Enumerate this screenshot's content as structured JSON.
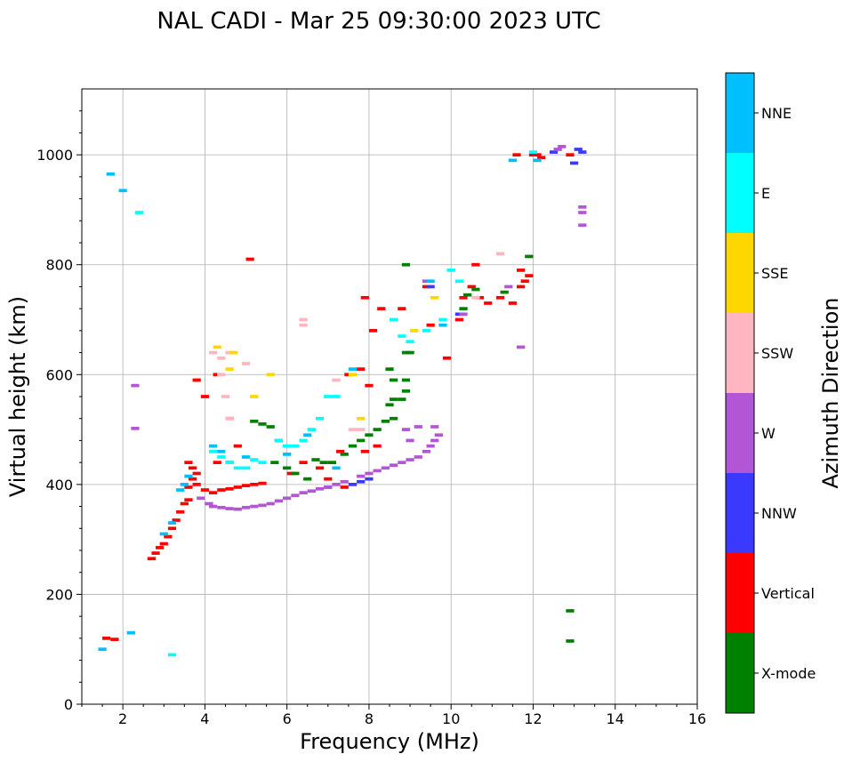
{
  "chart_data": {
    "type": "scatter",
    "title": "NAL CADI - Mar 25 09:30:00 2023 UTC",
    "xlabel": "Frequency (MHz)",
    "ylabel": "Virtual height (km)",
    "xlim": [
      1,
      16
    ],
    "ylim": [
      0,
      1120
    ],
    "xticks": [
      "2",
      "4",
      "6",
      "8",
      "10",
      "12",
      "14",
      "16"
    ],
    "yticks": [
      "0",
      "200",
      "400",
      "600",
      "800",
      "1000"
    ],
    "grid": true,
    "colorbar": {
      "label": "Azimuth Direction",
      "categories": [
        {
          "name": "X-mode",
          "color": "#008000"
        },
        {
          "name": "Vertical",
          "color": "#ff0000"
        },
        {
          "name": "NNW",
          "color": "#3a3aff"
        },
        {
          "name": "W",
          "color": "#b356d6"
        },
        {
          "name": "SSW",
          "color": "#ffb6c1"
        },
        {
          "name": "SSE",
          "color": "#ffd700"
        },
        {
          "name": "E",
          "color": "#00ffff"
        },
        {
          "name": "NNE",
          "color": "#00bfff"
        }
      ]
    },
    "series": [
      {
        "name": "Vertical",
        "points": [
          [
            1.6,
            120
          ],
          [
            1.8,
            118
          ],
          [
            2.7,
            265
          ],
          [
            2.8,
            275
          ],
          [
            2.9,
            285
          ],
          [
            3.0,
            292
          ],
          [
            3.1,
            305
          ],
          [
            3.2,
            320
          ],
          [
            3.3,
            335
          ],
          [
            3.4,
            350
          ],
          [
            3.5,
            365
          ],
          [
            3.6,
            372
          ],
          [
            3.6,
            395
          ],
          [
            3.7,
            410
          ],
          [
            3.7,
            430
          ],
          [
            3.6,
            440
          ],
          [
            3.8,
            420
          ],
          [
            3.8,
            400
          ],
          [
            4.0,
            390
          ],
          [
            4.2,
            385
          ],
          [
            4.4,
            390
          ],
          [
            4.6,
            392
          ],
          [
            4.8,
            395
          ],
          [
            5.0,
            398
          ],
          [
            5.2,
            400
          ],
          [
            5.4,
            402
          ],
          [
            4.0,
            560
          ],
          [
            3.8,
            590
          ],
          [
            4.3,
            600
          ],
          [
            4.6,
            520
          ],
          [
            4.8,
            470
          ],
          [
            4.3,
            440
          ],
          [
            4.6,
            440
          ],
          [
            5.1,
            810
          ],
          [
            6.1,
            420
          ],
          [
            6.4,
            440
          ],
          [
            6.8,
            430
          ],
          [
            7.0,
            410
          ],
          [
            7.4,
            395
          ],
          [
            7.3,
            460
          ],
          [
            7.9,
            460
          ],
          [
            8.2,
            470
          ],
          [
            7.5,
            600
          ],
          [
            7.8,
            610
          ],
          [
            8.0,
            580
          ],
          [
            7.9,
            740
          ],
          [
            8.1,
            680
          ],
          [
            8.3,
            720
          ],
          [
            8.8,
            720
          ],
          [
            9.4,
            760
          ],
          [
            9.5,
            690
          ],
          [
            9.9,
            630
          ],
          [
            10.2,
            700
          ],
          [
            10.3,
            740
          ],
          [
            10.5,
            760
          ],
          [
            10.6,
            800
          ],
          [
            10.7,
            740
          ],
          [
            10.9,
            730
          ],
          [
            11.2,
            740
          ],
          [
            11.5,
            730
          ],
          [
            11.7,
            760
          ],
          [
            11.7,
            790
          ],
          [
            11.8,
            770
          ],
          [
            11.9,
            780
          ],
          [
            12.0,
            1000
          ],
          [
            12.1,
            1000
          ],
          [
            12.2,
            995
          ],
          [
            11.6,
            1000
          ],
          [
            12.9,
            1000
          ]
        ]
      },
      {
        "name": "X-mode",
        "points": [
          [
            5.2,
            515
          ],
          [
            5.4,
            510
          ],
          [
            5.6,
            505
          ],
          [
            5.8,
            480
          ],
          [
            5.7,
            440
          ],
          [
            6.0,
            430
          ],
          [
            6.2,
            420
          ],
          [
            6.5,
            410
          ],
          [
            6.7,
            445
          ],
          [
            6.9,
            440
          ],
          [
            7.1,
            440
          ],
          [
            7.4,
            455
          ],
          [
            7.6,
            470
          ],
          [
            7.8,
            480
          ],
          [
            8.0,
            490
          ],
          [
            8.2,
            500
          ],
          [
            8.4,
            515
          ],
          [
            8.6,
            520
          ],
          [
            8.5,
            545
          ],
          [
            8.6,
            555
          ],
          [
            8.8,
            555
          ],
          [
            8.9,
            570
          ],
          [
            8.6,
            590
          ],
          [
            8.9,
            590
          ],
          [
            8.5,
            610
          ],
          [
            8.9,
            640
          ],
          [
            9.0,
            640
          ],
          [
            8.9,
            800
          ],
          [
            10.3,
            720
          ],
          [
            10.4,
            745
          ],
          [
            10.6,
            755
          ],
          [
            11.3,
            750
          ],
          [
            11.9,
            815
          ],
          [
            12.9,
            170
          ],
          [
            12.9,
            115
          ]
        ]
      },
      {
        "name": "NNW",
        "points": [
          [
            7.0,
            395
          ],
          [
            7.6,
            400
          ],
          [
            7.8,
            405
          ],
          [
            8.0,
            410
          ],
          [
            9.5,
            760
          ],
          [
            10.2,
            710
          ],
          [
            13.1,
            1010
          ],
          [
            13.2,
            1005
          ],
          [
            12.5,
            1005
          ],
          [
            13.0,
            985
          ]
        ]
      },
      {
        "name": "W",
        "points": [
          [
            3.9,
            375
          ],
          [
            4.1,
            365
          ],
          [
            4.2,
            360
          ],
          [
            4.4,
            358
          ],
          [
            4.6,
            356
          ],
          [
            4.8,
            355
          ],
          [
            5.0,
            358
          ],
          [
            5.2,
            360
          ],
          [
            5.4,
            362
          ],
          [
            5.6,
            365
          ],
          [
            5.8,
            370
          ],
          [
            6.0,
            375
          ],
          [
            6.2,
            380
          ],
          [
            6.4,
            385
          ],
          [
            6.6,
            388
          ],
          [
            6.8,
            392
          ],
          [
            7.0,
            395
          ],
          [
            7.2,
            400
          ],
          [
            7.4,
            405
          ],
          [
            7.8,
            415
          ],
          [
            8.0,
            420
          ],
          [
            8.2,
            425
          ],
          [
            8.4,
            430
          ],
          [
            8.6,
            435
          ],
          [
            8.8,
            440
          ],
          [
            9.0,
            445
          ],
          [
            9.2,
            450
          ],
          [
            9.4,
            460
          ],
          [
            9.5,
            470
          ],
          [
            9.6,
            480
          ],
          [
            9.7,
            490
          ],
          [
            9.6,
            505
          ],
          [
            9.2,
            505
          ],
          [
            8.9,
            500
          ],
          [
            9.0,
            480
          ],
          [
            9.4,
            770
          ],
          [
            10.3,
            710
          ],
          [
            11.4,
            760
          ],
          [
            11.7,
            650
          ],
          [
            12.6,
            1010
          ],
          [
            12.7,
            1015
          ],
          [
            13.2,
            905
          ],
          [
            13.2,
            895
          ],
          [
            13.2,
            872
          ],
          [
            2.3,
            580
          ],
          [
            2.3,
            502
          ]
        ]
      },
      {
        "name": "SSW",
        "points": [
          [
            4.2,
            640
          ],
          [
            4.4,
            630
          ],
          [
            4.6,
            640
          ],
          [
            4.4,
            600
          ],
          [
            4.5,
            560
          ],
          [
            4.6,
            520
          ],
          [
            5.0,
            620
          ],
          [
            6.4,
            690
          ],
          [
            6.4,
            700
          ],
          [
            7.2,
            590
          ],
          [
            7.6,
            500
          ],
          [
            7.8,
            500
          ],
          [
            10.6,
            740
          ],
          [
            11.2,
            820
          ]
        ]
      },
      {
        "name": "SSE",
        "points": [
          [
            4.3,
            650
          ],
          [
            4.6,
            610
          ],
          [
            4.7,
            640
          ],
          [
            5.2,
            560
          ],
          [
            5.6,
            600
          ],
          [
            7.6,
            600
          ],
          [
            7.8,
            520
          ],
          [
            9.6,
            740
          ],
          [
            9.1,
            680
          ]
        ]
      },
      {
        "name": "E",
        "points": [
          [
            4.2,
            460
          ],
          [
            4.4,
            450
          ],
          [
            4.6,
            440
          ],
          [
            4.8,
            430
          ],
          [
            5.0,
            430
          ],
          [
            5.2,
            445
          ],
          [
            5.4,
            440
          ],
          [
            5.8,
            480
          ],
          [
            6.0,
            470
          ],
          [
            6.2,
            470
          ],
          [
            6.4,
            480
          ],
          [
            6.6,
            500
          ],
          [
            6.8,
            520
          ],
          [
            7.0,
            560
          ],
          [
            7.2,
            560
          ],
          [
            8.6,
            700
          ],
          [
            8.8,
            670
          ],
          [
            9.0,
            660
          ],
          [
            9.4,
            680
          ],
          [
            9.8,
            700
          ],
          [
            10.0,
            790
          ],
          [
            10.2,
            770
          ],
          [
            2.4,
            895
          ],
          [
            12.0,
            1005
          ],
          [
            3.2,
            90
          ]
        ]
      },
      {
        "name": "NNE",
        "points": [
          [
            3.5,
            400
          ],
          [
            3.6,
            415
          ],
          [
            3.4,
            390
          ],
          [
            3.2,
            330
          ],
          [
            3.0,
            310
          ],
          [
            4.2,
            470
          ],
          [
            4.4,
            460
          ],
          [
            5.0,
            450
          ],
          [
            6.0,
            455
          ],
          [
            6.5,
            490
          ],
          [
            7.2,
            430
          ],
          [
            7.6,
            610
          ],
          [
            9.5,
            770
          ],
          [
            9.8,
            690
          ],
          [
            1.7,
            965
          ],
          [
            2.0,
            935
          ],
          [
            11.5,
            990
          ],
          [
            12.1,
            990
          ],
          [
            1.5,
            100
          ],
          [
            2.2,
            130
          ]
        ]
      }
    ]
  }
}
